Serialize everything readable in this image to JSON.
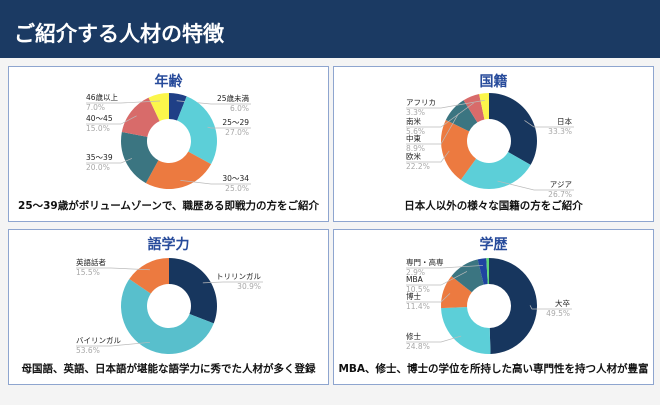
{
  "header": {
    "title": "ご紹介する人材の特徴"
  },
  "chart_data": [
    {
      "type": "pie",
      "id": "age",
      "title": "年齢",
      "caption": "25〜39歳がボリュームゾーンで、職歴ある即戦力の方をご紹介",
      "slices": [
        {
          "label": "25歳未満",
          "value": 6.0,
          "pct": "6.0%",
          "color": "#1f3f86"
        },
        {
          "label": "25〜29",
          "value": 27.0,
          "pct": "27.0%",
          "color": "#5ccfd8"
        },
        {
          "label": "30〜34",
          "value": 25.0,
          "pct": "25.0%",
          "color": "#ec7a40"
        },
        {
          "label": "35〜39",
          "value": 20.0,
          "pct": "20.0%",
          "color": "#3b7581"
        },
        {
          "label": "40〜45",
          "value": 15.0,
          "pct": "15.0%",
          "color": "#d86b6a"
        },
        {
          "label": "46歳以上",
          "value": 7.0,
          "pct": "7.0%",
          "color": "#fbf64b"
        }
      ]
    },
    {
      "type": "pie",
      "id": "nationality",
      "title": "国籍",
      "caption": "日本人以外の様々な国籍の方をご紹介",
      "slices": [
        {
          "label": "日本",
          "value": 33.3,
          "pct": "33.3%",
          "color": "#17365e"
        },
        {
          "label": "アジア",
          "value": 26.7,
          "pct": "26.7%",
          "color": "#5ccfd8"
        },
        {
          "label": "欧米",
          "value": 22.2,
          "pct": "22.2%",
          "color": "#ec7a40"
        },
        {
          "label": "中東",
          "value": 8.9,
          "pct": "8.9%",
          "color": "#3b7581"
        },
        {
          "label": "南米",
          "value": 5.6,
          "pct": "5.6%",
          "color": "#d86b6a"
        },
        {
          "label": "アフリカ",
          "value": 3.3,
          "pct": "3.3%",
          "color": "#fbf64b"
        }
      ]
    },
    {
      "type": "pie",
      "id": "language",
      "title": "語学力",
      "caption": "母国語、英語、日本語が堪能な語学力に秀でた人材が多く登録",
      "slices": [
        {
          "label": "トリリンガル",
          "value": 30.9,
          "pct": "30.9%",
          "color": "#17365e"
        },
        {
          "label": "バイリンガル",
          "value": 53.6,
          "pct": "53.6%",
          "color": "#58bfcc"
        },
        {
          "label": "英語話者",
          "value": 15.5,
          "pct": "15.5%",
          "color": "#ec7a40"
        }
      ]
    },
    {
      "type": "pie",
      "id": "education",
      "title": "学歴",
      "caption": "MBA、修士、博士の学位を所持した高い専門性を持つ人材が豊富",
      "slices": [
        {
          "label": "大卒",
          "value": 49.5,
          "pct": "49.5%",
          "color": "#17365e"
        },
        {
          "label": "修士",
          "value": 24.8,
          "pct": "24.8%",
          "color": "#5ccfd8"
        },
        {
          "label": "博士",
          "value": 11.4,
          "pct": "11.4%",
          "color": "#ec7a40"
        },
        {
          "label": "MBA",
          "value": 10.5,
          "pct": "10.5%",
          "color": "#3b7581"
        },
        {
          "label": "専門・高専",
          "value": 2.9,
          "pct": "2.9%",
          "color": "#1f44a0"
        },
        {
          "label": "",
          "value": 0.9,
          "pct": "",
          "color": "#5fd67a"
        }
      ]
    }
  ]
}
